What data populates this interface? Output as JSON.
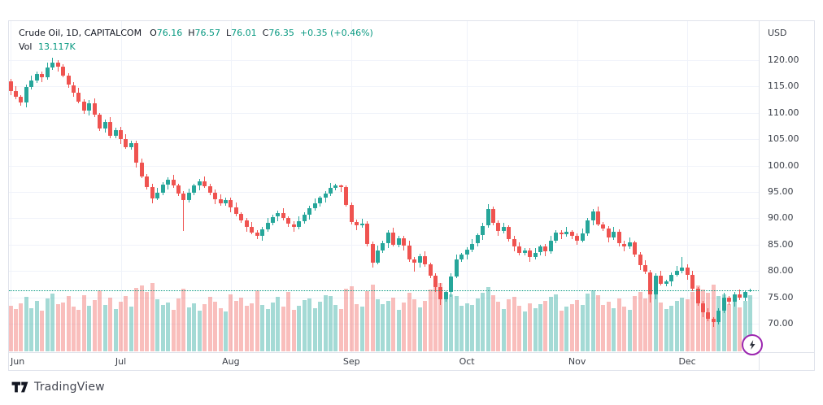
{
  "header": {
    "symbol": "Crude Oil, 1D, CAPITALCOM",
    "ohlc": [
      {
        "label": "O",
        "value": "76.16"
      },
      {
        "label": "H",
        "value": "76.57"
      },
      {
        "label": "L",
        "value": "76.01"
      },
      {
        "label": "C",
        "value": "76.35"
      }
    ],
    "change": "+0.35 (+0.46%)",
    "vol_label": "Vol",
    "vol_value": "13.117K"
  },
  "price_axis": {
    "currency": "USD",
    "ticks": [
      120,
      115,
      110,
      105,
      100,
      95,
      90,
      85,
      80,
      75,
      70
    ]
  },
  "time_axis": {
    "months": [
      {
        "label": "Jun",
        "i": 0
      },
      {
        "label": "Jul",
        "i": 21
      },
      {
        "label": "Aug",
        "i": 42
      },
      {
        "label": "Sep",
        "i": 65
      },
      {
        "label": "Oct",
        "i": 87
      },
      {
        "label": "Nov",
        "i": 108
      },
      {
        "label": "Dec",
        "i": 129
      }
    ]
  },
  "branding": {
    "attribution": "TradingView"
  },
  "colors": {
    "up": "#26a69a",
    "down": "#ef5350",
    "value_text": "#089981",
    "text": "#131722",
    "axis_text": "#3c4049",
    "grid": "#f0f3fa",
    "border": "#e0e3eb",
    "flash_ring": "#9c27b0"
  },
  "chart_data": {
    "type": "candlestick",
    "symbol": "Crude Oil",
    "interval": "1D",
    "exchange": "CAPITALCOM",
    "currency": "USD",
    "ylim": [
      67,
      122
    ],
    "grid": true,
    "last": {
      "open": 76.16,
      "high": 76.57,
      "low": 76.01,
      "close": 76.35,
      "change": 0.35,
      "change_pct": 0.46,
      "volume_k": 13.117
    },
    "series_note": "candles are [open, high, low, close, volume_k] daily from June to mid-December",
    "candles": [
      [
        116.0,
        116.5,
        113.3,
        114.2,
        10.5
      ],
      [
        114.2,
        115.1,
        112.6,
        113.0,
        9.8
      ],
      [
        113.0,
        113.4,
        111.4,
        111.9,
        11.2
      ],
      [
        111.9,
        115.4,
        111.0,
        114.9,
        12.6
      ],
      [
        114.9,
        117.1,
        114.5,
        116.2,
        10.1
      ],
      [
        116.2,
        117.8,
        115.7,
        117.4,
        11.8
      ],
      [
        117.4,
        117.9,
        115.8,
        116.7,
        9.5
      ],
      [
        116.7,
        119.5,
        116.3,
        118.6,
        12.2
      ],
      [
        118.6,
        120.5,
        118.1,
        119.5,
        13.4
      ],
      [
        119.5,
        120.0,
        117.8,
        118.7,
        10.9
      ],
      [
        118.7,
        119.3,
        116.7,
        117.1,
        11.4
      ],
      [
        117.1,
        117.5,
        114.8,
        115.3,
        12.8
      ],
      [
        115.3,
        115.8,
        113.0,
        113.9,
        10.3
      ],
      [
        113.9,
        114.8,
        111.8,
        112.2,
        9.7
      ],
      [
        112.2,
        112.6,
        109.9,
        110.4,
        13.1
      ],
      [
        110.4,
        112.4,
        109.5,
        111.9,
        10.6
      ],
      [
        111.9,
        112.8,
        109.2,
        109.6,
        11.9
      ],
      [
        109.6,
        110.0,
        106.6,
        107.1,
        14.2
      ],
      [
        107.1,
        108.8,
        106.2,
        108.3,
        10.8
      ],
      [
        108.3,
        109.2,
        105.2,
        105.6,
        12.5
      ],
      [
        105.6,
        107.2,
        105.1,
        106.8,
        9.9
      ],
      [
        106.8,
        107.3,
        104.1,
        105.0,
        11.6
      ],
      [
        105.0,
        105.9,
        103.1,
        103.5,
        12.9
      ],
      [
        103.5,
        104.7,
        103.0,
        104.3,
        10.4
      ],
      [
        104.3,
        104.8,
        99.6,
        100.5,
        14.8
      ],
      [
        100.5,
        101.4,
        97.6,
        98.0,
        15.3
      ],
      [
        98.0,
        98.4,
        95.5,
        96.0,
        13.7
      ],
      [
        96.0,
        96.5,
        92.9,
        93.8,
        15.8
      ],
      [
        93.8,
        95.8,
        93.4,
        94.9,
        12.1
      ],
      [
        94.9,
        96.8,
        94.4,
        96.4,
        10.7
      ],
      [
        96.4,
        97.8,
        95.5,
        97.3,
        11.3
      ],
      [
        97.3,
        98.2,
        95.8,
        96.2,
        9.6
      ],
      [
        96.2,
        96.6,
        94.2,
        94.7,
        12.3
      ],
      [
        94.7,
        95.2,
        87.6,
        93.4,
        14.5
      ],
      [
        93.4,
        95.7,
        93.0,
        94.8,
        10.2
      ],
      [
        94.8,
        96.6,
        94.3,
        96.2,
        11.1
      ],
      [
        96.2,
        97.5,
        95.3,
        97.0,
        9.4
      ],
      [
        97.0,
        97.9,
        95.7,
        96.1,
        10.9
      ],
      [
        96.1,
        96.5,
        94.4,
        94.9,
        12.7
      ],
      [
        94.9,
        95.4,
        92.7,
        93.6,
        11.5
      ],
      [
        93.6,
        94.5,
        92.4,
        92.8,
        10.1
      ],
      [
        92.8,
        93.9,
        92.3,
        93.5,
        9.2
      ],
      [
        93.5,
        94.0,
        91.2,
        92.1,
        13.3
      ],
      [
        92.1,
        93.0,
        90.4,
        90.8,
        11.7
      ],
      [
        90.8,
        91.2,
        89.1,
        89.6,
        12.4
      ],
      [
        89.6,
        90.1,
        87.5,
        88.4,
        10.6
      ],
      [
        88.4,
        89.3,
        86.9,
        87.3,
        11.2
      ],
      [
        87.3,
        87.7,
        86.1,
        86.6,
        14.1
      ],
      [
        86.6,
        88.4,
        85.7,
        87.9,
        10.8
      ],
      [
        87.9,
        90.0,
        87.5,
        89.1,
        9.9
      ],
      [
        89.1,
        90.7,
        88.6,
        90.3,
        11.4
      ],
      [
        90.3,
        91.5,
        89.4,
        91.0,
        12.6
      ],
      [
        91.0,
        91.9,
        89.6,
        90.0,
        10.3
      ],
      [
        90.0,
        90.4,
        88.4,
        88.9,
        13.8
      ],
      [
        88.9,
        89.4,
        87.4,
        88.3,
        9.7
      ],
      [
        88.3,
        90.4,
        87.9,
        89.5,
        10.5
      ],
      [
        89.5,
        91.1,
        89.0,
        90.7,
        11.9
      ],
      [
        90.7,
        92.4,
        89.8,
        91.9,
        12.2
      ],
      [
        91.9,
        93.7,
        91.5,
        92.8,
        10.0
      ],
      [
        92.8,
        94.3,
        92.3,
        93.9,
        11.6
      ],
      [
        93.9,
        95.2,
        93.0,
        94.7,
        13.0
      ],
      [
        94.7,
        96.7,
        94.3,
        95.8,
        12.8
      ],
      [
        95.8,
        96.6,
        95.3,
        96.2,
        10.7
      ],
      [
        96.2,
        96.4,
        95.0,
        95.9,
        9.8
      ],
      [
        95.9,
        96.3,
        92.2,
        92.6,
        14.6
      ],
      [
        92.6,
        93.0,
        88.8,
        89.3,
        15.1
      ],
      [
        89.3,
        89.8,
        87.7,
        88.6,
        11.0
      ],
      [
        88.6,
        89.9,
        88.2,
        89.0,
        10.4
      ],
      [
        89.0,
        89.4,
        84.6,
        85.1,
        13.9
      ],
      [
        85.1,
        85.6,
        80.7,
        81.6,
        15.5
      ],
      [
        81.6,
        84.8,
        81.2,
        83.9,
        12.0
      ],
      [
        83.9,
        85.7,
        83.4,
        85.3,
        10.9
      ],
      [
        85.3,
        87.8,
        84.4,
        87.3,
        11.8
      ],
      [
        87.3,
        88.2,
        84.6,
        85.0,
        12.5
      ],
      [
        85.0,
        86.6,
        84.5,
        86.2,
        9.6
      ],
      [
        86.2,
        86.7,
        83.9,
        84.8,
        11.3
      ],
      [
        84.8,
        85.7,
        81.8,
        82.2,
        13.6
      ],
      [
        82.2,
        82.6,
        79.9,
        81.6,
        12.1
      ],
      [
        81.6,
        83.3,
        80.7,
        82.8,
        10.2
      ],
      [
        82.8,
        83.7,
        80.8,
        81.2,
        11.7
      ],
      [
        81.2,
        81.6,
        78.6,
        79.1,
        14.3
      ],
      [
        79.1,
        79.6,
        76.0,
        76.9,
        15.0
      ],
      [
        76.9,
        77.8,
        73.6,
        74.6,
        15.9
      ],
      [
        74.6,
        76.4,
        74.1,
        76.0,
        12.4
      ],
      [
        76.0,
        79.5,
        75.1,
        79.0,
        13.2
      ],
      [
        79.0,
        83.1,
        78.6,
        82.2,
        12.9
      ],
      [
        82.2,
        83.5,
        81.7,
        83.1,
        10.6
      ],
      [
        83.1,
        84.5,
        82.2,
        84.0,
        11.1
      ],
      [
        84.0,
        86.1,
        83.6,
        85.2,
        10.8
      ],
      [
        85.2,
        87.2,
        84.7,
        86.8,
        12.3
      ],
      [
        86.8,
        89.1,
        85.9,
        88.6,
        13.5
      ],
      [
        88.6,
        92.7,
        88.2,
        91.8,
        14.9
      ],
      [
        91.8,
        92.2,
        88.6,
        89.1,
        13.1
      ],
      [
        89.1,
        89.6,
        86.7,
        87.6,
        11.5
      ],
      [
        87.6,
        89.2,
        87.2,
        88.3,
        9.9
      ],
      [
        88.3,
        88.7,
        85.6,
        86.1,
        12.0
      ],
      [
        86.1,
        86.6,
        83.7,
        84.6,
        12.7
      ],
      [
        84.6,
        85.5,
        83.0,
        83.4,
        10.5
      ],
      [
        83.4,
        84.3,
        82.9,
        83.9,
        9.3
      ],
      [
        83.9,
        84.4,
        81.7,
        82.6,
        11.2
      ],
      [
        82.6,
        84.4,
        82.2,
        83.5,
        10.0
      ],
      [
        83.5,
        85.0,
        83.0,
        84.6,
        10.9
      ],
      [
        84.6,
        85.1,
        82.8,
        83.7,
        11.8
      ],
      [
        83.7,
        86.6,
        83.3,
        85.7,
        12.6
      ],
      [
        85.7,
        87.7,
        85.2,
        87.3,
        13.3
      ],
      [
        87.3,
        87.8,
        86.0,
        86.9,
        9.5
      ],
      [
        86.9,
        88.3,
        86.5,
        87.4,
        10.3
      ],
      [
        87.4,
        87.8,
        86.1,
        86.6,
        11.0
      ],
      [
        86.6,
        87.1,
        84.9,
        85.8,
        11.9
      ],
      [
        85.8,
        88.0,
        85.4,
        87.1,
        10.7
      ],
      [
        87.1,
        90.0,
        86.6,
        89.6,
        13.4
      ],
      [
        89.6,
        91.8,
        88.7,
        91.3,
        14.2
      ],
      [
        91.3,
        92.2,
        88.5,
        88.9,
        13.0
      ],
      [
        88.9,
        89.3,
        87.6,
        88.1,
        10.8
      ],
      [
        88.1,
        88.6,
        85.4,
        86.3,
        11.6
      ],
      [
        86.3,
        88.4,
        85.9,
        87.5,
        10.1
      ],
      [
        87.5,
        87.9,
        84.7,
        85.2,
        12.2
      ],
      [
        85.2,
        85.7,
        83.7,
        84.6,
        10.4
      ],
      [
        84.6,
        86.3,
        84.2,
        85.4,
        9.7
      ],
      [
        85.4,
        85.8,
        82.6,
        83.1,
        12.9
      ],
      [
        83.1,
        83.6,
        80.2,
        81.1,
        13.7
      ],
      [
        81.1,
        82.0,
        79.4,
        79.8,
        12.3
      ],
      [
        79.8,
        80.2,
        74.0,
        75.5,
        15.6
      ],
      [
        75.5,
        79.6,
        74.6,
        79.1,
        13.9
      ],
      [
        79.1,
        80.0,
        77.2,
        77.6,
        11.4
      ],
      [
        77.6,
        78.4,
        77.1,
        78.0,
        9.8
      ],
      [
        78.0,
        79.8,
        77.1,
        79.3,
        10.6
      ],
      [
        79.3,
        81.0,
        78.9,
        80.1,
        11.7
      ],
      [
        80.1,
        82.7,
        79.6,
        80.7,
        12.5
      ],
      [
        80.7,
        81.2,
        78.3,
        79.2,
        12.0
      ],
      [
        79.2,
        80.1,
        76.2,
        76.6,
        13.8
      ],
      [
        76.6,
        77.0,
        73.4,
        73.9,
        15.2
      ],
      [
        73.9,
        74.4,
        71.2,
        72.1,
        14.4
      ],
      [
        72.1,
        73.0,
        70.5,
        70.9,
        13.6
      ],
      [
        70.9,
        71.3,
        69.4,
        70.3,
        15.4
      ],
      [
        70.3,
        72.9,
        69.8,
        72.4,
        12.8
      ],
      [
        72.4,
        75.8,
        72.0,
        74.9,
        13.2
      ],
      [
        74.9,
        75.3,
        73.6,
        74.1,
        10.9
      ],
      [
        74.1,
        76.1,
        73.2,
        75.6,
        11.5
      ],
      [
        75.6,
        76.5,
        74.5,
        74.9,
        10.2
      ],
      [
        74.9,
        76.4,
        74.4,
        76.0,
        11.8
      ],
      [
        76.16,
        76.57,
        76.01,
        76.35,
        13.117
      ]
    ]
  }
}
